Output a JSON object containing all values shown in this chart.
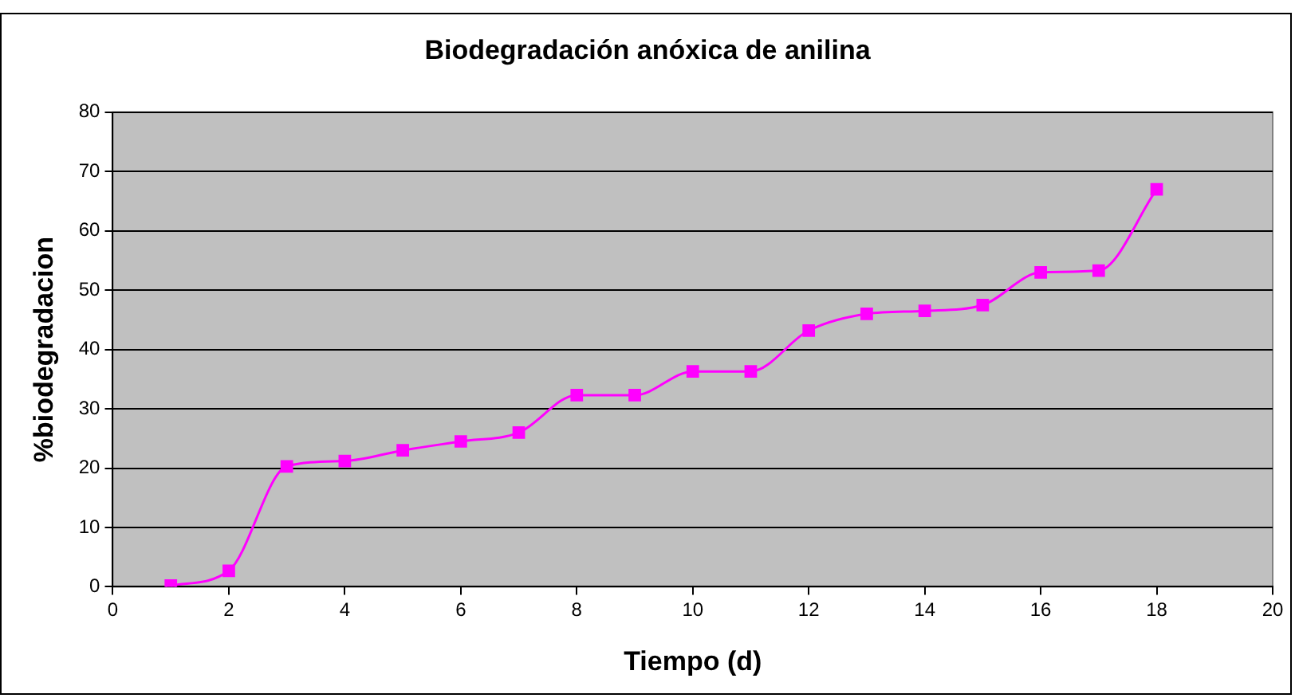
{
  "chart_data": {
    "type": "line",
    "title": "Biodegradación anóxica de anilina",
    "xlabel": "Tiempo (d)",
    "ylabel": "%biodegradacion",
    "x": [
      1,
      2,
      3,
      4,
      5,
      6,
      7,
      8,
      9,
      10,
      11,
      12,
      13,
      14,
      15,
      16,
      17,
      18
    ],
    "series": [
      {
        "color": "#ff00ff",
        "values": [
          0.2,
          2.7,
          20.3,
          21.2,
          23,
          24.5,
          26,
          32.3,
          32.3,
          36.3,
          36.3,
          43.2,
          46,
          46.5,
          47.5,
          53,
          53.3,
          67
        ]
      }
    ],
    "xlim": [
      0,
      20
    ],
    "xticks": [
      0,
      2,
      4,
      6,
      8,
      10,
      12,
      14,
      16,
      18,
      20
    ],
    "ylim": [
      0,
      80
    ],
    "yticks": [
      0,
      10,
      20,
      30,
      40,
      50,
      60,
      70,
      80
    ],
    "grid": "y",
    "legend": false,
    "marker": "square",
    "line_style": "solid"
  }
}
